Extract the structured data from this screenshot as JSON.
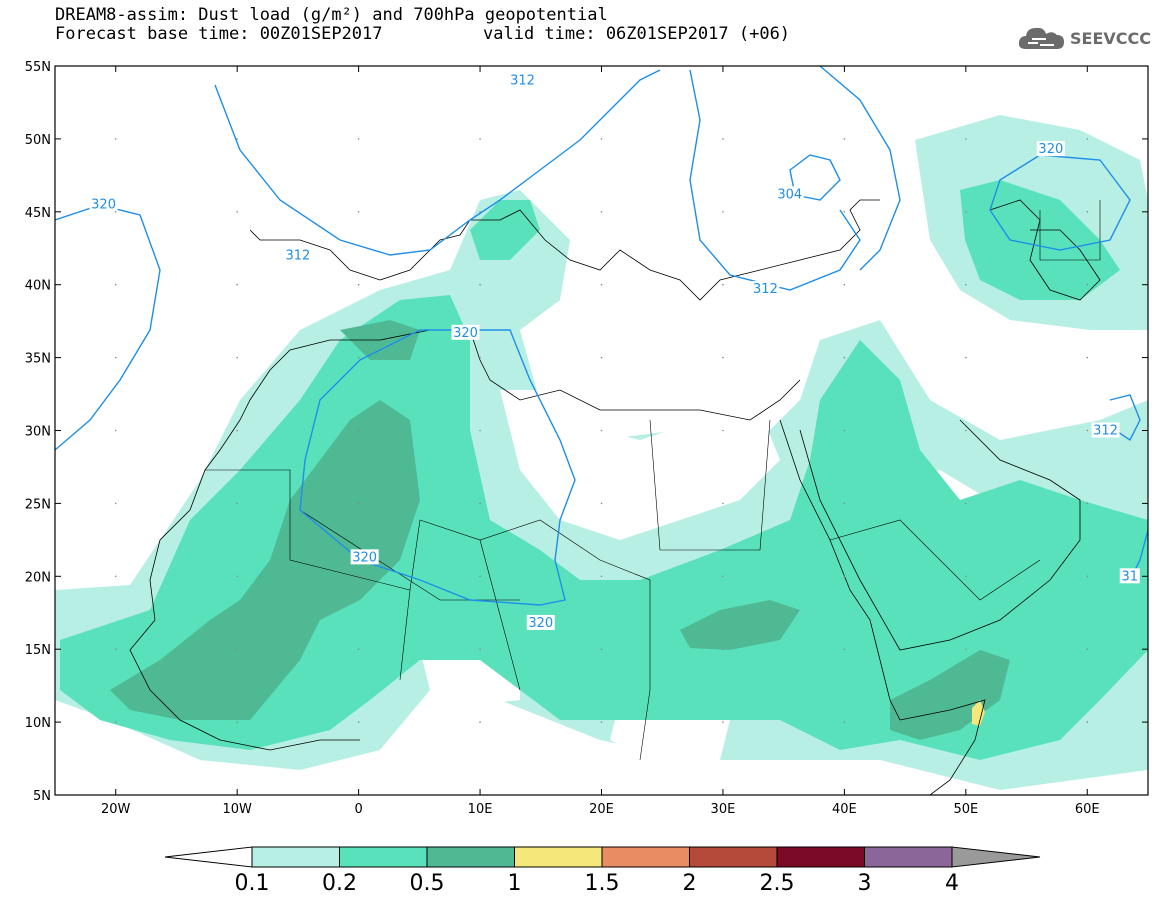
{
  "header": {
    "title_line1": "DREAM8-assim: Dust load (g/m²) and 700hPa geopotential",
    "title_line2_left": "Forecast base time: 00Z01SEP2017",
    "title_line2_right": "valid time: 06Z01SEP2017 (+06)",
    "logo_text": "SEEVCCC",
    "logo_icon": "cloud-icon"
  },
  "map": {
    "lon_labels": [
      "20W",
      "10W",
      "0",
      "10E",
      "20E",
      "30E",
      "40E",
      "50E",
      "60E"
    ],
    "lat_labels": [
      "55N",
      "50N",
      "45N",
      "40N",
      "35N",
      "30N",
      "25N",
      "20N",
      "15N",
      "10N",
      "5N"
    ],
    "lon_range": [
      -25,
      65
    ],
    "lat_range": [
      5,
      55
    ],
    "contour_labels": [
      {
        "value": "312",
        "lon": -5.0,
        "lat": 42.0
      },
      {
        "value": "320",
        "lon": -21.0,
        "lat": 45.5
      },
      {
        "value": "312",
        "lon": 13.5,
        "lat": 54.0
      },
      {
        "value": "320",
        "lon": 8.8,
        "lat": 36.7
      },
      {
        "value": "304",
        "lon": 35.5,
        "lat": 46.2
      },
      {
        "value": "312",
        "lon": 33.5,
        "lat": 39.7
      },
      {
        "value": "320",
        "lon": 57.0,
        "lat": 49.3
      },
      {
        "value": "312",
        "lon": 61.5,
        "lat": 30.0
      },
      {
        "value": "320",
        "lon": 0.5,
        "lat": 21.3
      },
      {
        "value": "320",
        "lon": 15.0,
        "lat": 16.8
      },
      {
        "value": "31",
        "lon": 63.5,
        "lat": 20.0
      }
    ],
    "contour_color": "#1f8ee8"
  },
  "colorbar": {
    "labels": [
      "0.1",
      "0.2",
      "0.5",
      "1",
      "1.5",
      "2",
      "2.5",
      "3",
      "4"
    ],
    "colors": [
      "#b7efe5",
      "#59e1bc",
      "#4fb994",
      "#f5e77a",
      "#e88c64",
      "#b5493a",
      "#7a0a25",
      "#8a6798"
    ],
    "over_color": "#9a9a9a",
    "under_color": "#ffffff"
  }
}
